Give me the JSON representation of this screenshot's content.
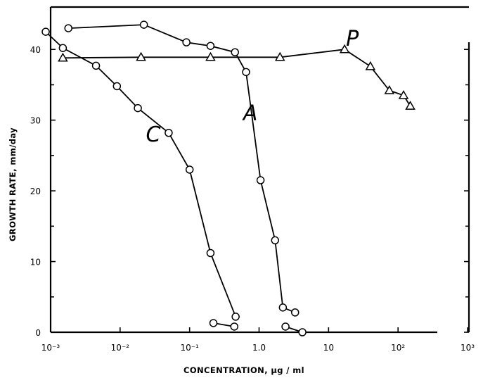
{
  "chart_data": {
    "type": "line",
    "title": "",
    "xlabel": "CONCENTRATION,  μg / ml",
    "ylabel": "GROWTH RATE,  mm/day",
    "xscale": "log",
    "xlim": [
      0.001,
      1000
    ],
    "ylim": [
      0,
      45
    ],
    "grid": false,
    "x_ticks": [
      {
        "value": 0.001,
        "label": "10⁻³"
      },
      {
        "value": 0.01,
        "label": "10⁻²"
      },
      {
        "value": 0.1,
        "label": "10⁻¹"
      },
      {
        "value": 1,
        "label": "1.0"
      },
      {
        "value": 10,
        "label": "10"
      },
      {
        "value": 100,
        "label": "10²"
      },
      {
        "value": 1000,
        "label": "10³"
      }
    ],
    "y_ticks": [
      {
        "value": 0,
        "label": "0"
      },
      {
        "value": 10,
        "label": "10"
      },
      {
        "value": 20,
        "label": "20"
      },
      {
        "value": 30,
        "label": "30"
      },
      {
        "value": 40,
        "label": "40"
      }
    ],
    "series": [
      {
        "name": "C",
        "marker": "circle",
        "segments": [
          [
            [
              0.00085,
              42.5
            ],
            [
              0.0015,
              40.2
            ],
            [
              0.0045,
              37.7
            ],
            [
              0.009,
              34.8
            ],
            [
              0.018,
              31.7
            ],
            [
              0.05,
              28.2
            ],
            [
              0.1,
              23.0
            ],
            [
              0.2,
              11.2
            ],
            [
              0.46,
              2.2
            ]
          ],
          [
            [
              0.22,
              1.3
            ],
            [
              0.44,
              0.8
            ]
          ]
        ],
        "label_point": [
          0.03,
          27
        ]
      },
      {
        "name": "A",
        "marker": "circle",
        "segments": [
          [
            [
              0.0018,
              43.0
            ],
            [
              0.022,
              43.5
            ],
            [
              0.09,
              41.0
            ],
            [
              0.2,
              40.5
            ],
            [
              0.45,
              39.6
            ],
            [
              0.65,
              36.8
            ],
            [
              1.05,
              21.5
            ],
            [
              1.7,
              13.0
            ],
            [
              2.2,
              3.5
            ],
            [
              3.3,
              2.8
            ]
          ],
          [
            [
              2.4,
              0.8
            ],
            [
              4.2,
              0.0
            ]
          ]
        ],
        "label_point": [
          0.75,
          30
        ]
      },
      {
        "name": "P",
        "marker": "triangle",
        "segments": [
          [
            [
              0.0015,
              38.8
            ],
            [
              0.02,
              38.9
            ],
            [
              0.2,
              38.9
            ],
            [
              2.0,
              38.9
            ],
            [
              17.0,
              40.0
            ],
            [
              40.0,
              37.6
            ],
            [
              75.0,
              34.2
            ],
            [
              120.0,
              33.5
            ],
            [
              150.0,
              32.0
            ]
          ]
        ],
        "label_point": [
          22,
          40.5
        ]
      }
    ]
  }
}
